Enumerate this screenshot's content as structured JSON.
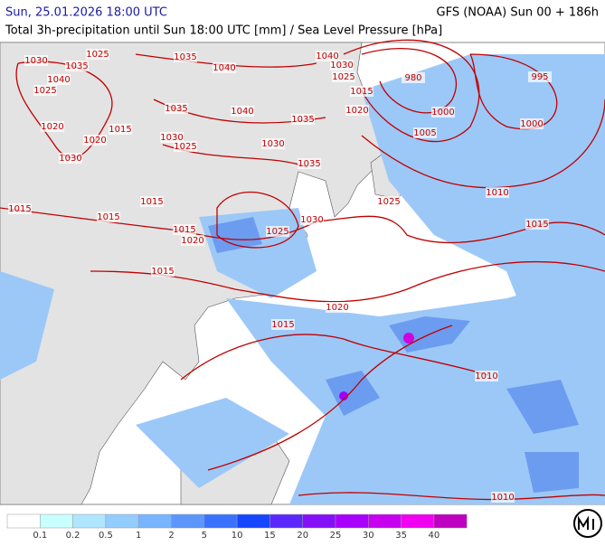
{
  "header": {
    "datetime": "Sun, 25.01.2026 18:00 UTC",
    "model": "GFS (NOAA) Sun 00 + 186h",
    "subtitle": "Total 3h-precipitation until Sun 18:00 UTC [mm] / Sea Level Pressure [hPa]"
  },
  "isobar_labels": [
    "1030",
    "1035",
    "1025",
    "1040",
    "1025",
    "1035",
    "1040",
    "1040",
    "1030",
    "1025",
    "980",
    "995",
    "1015",
    "1035",
    "1040",
    "1020",
    "1000",
    "1000",
    "1035",
    "1020",
    "1015",
    "1030",
    "1005",
    "1020",
    "1025",
    "1030",
    "1030",
    "1035",
    "1010",
    "1015",
    "1015",
    "1025",
    "1015",
    "1030",
    "1015",
    "1015",
    "1025",
    "1020",
    "1015",
    "1020",
    "1015",
    "1010",
    "1010"
  ],
  "legend": {
    "colors": [
      "#ffffff",
      "#c8ffff",
      "#aee6ff",
      "#93ccff",
      "#78b4ff",
      "#5c96fa",
      "#3a72ff",
      "#1646ff",
      "#5a28ff",
      "#8410f8",
      "#a800ff",
      "#c800f0",
      "#f000f0",
      "#c000c0"
    ],
    "labels": [
      "0.1",
      "0.2",
      "0.5",
      "1",
      "2",
      "5",
      "10",
      "15",
      "20",
      "25",
      "30",
      "35",
      "40"
    ]
  }
}
